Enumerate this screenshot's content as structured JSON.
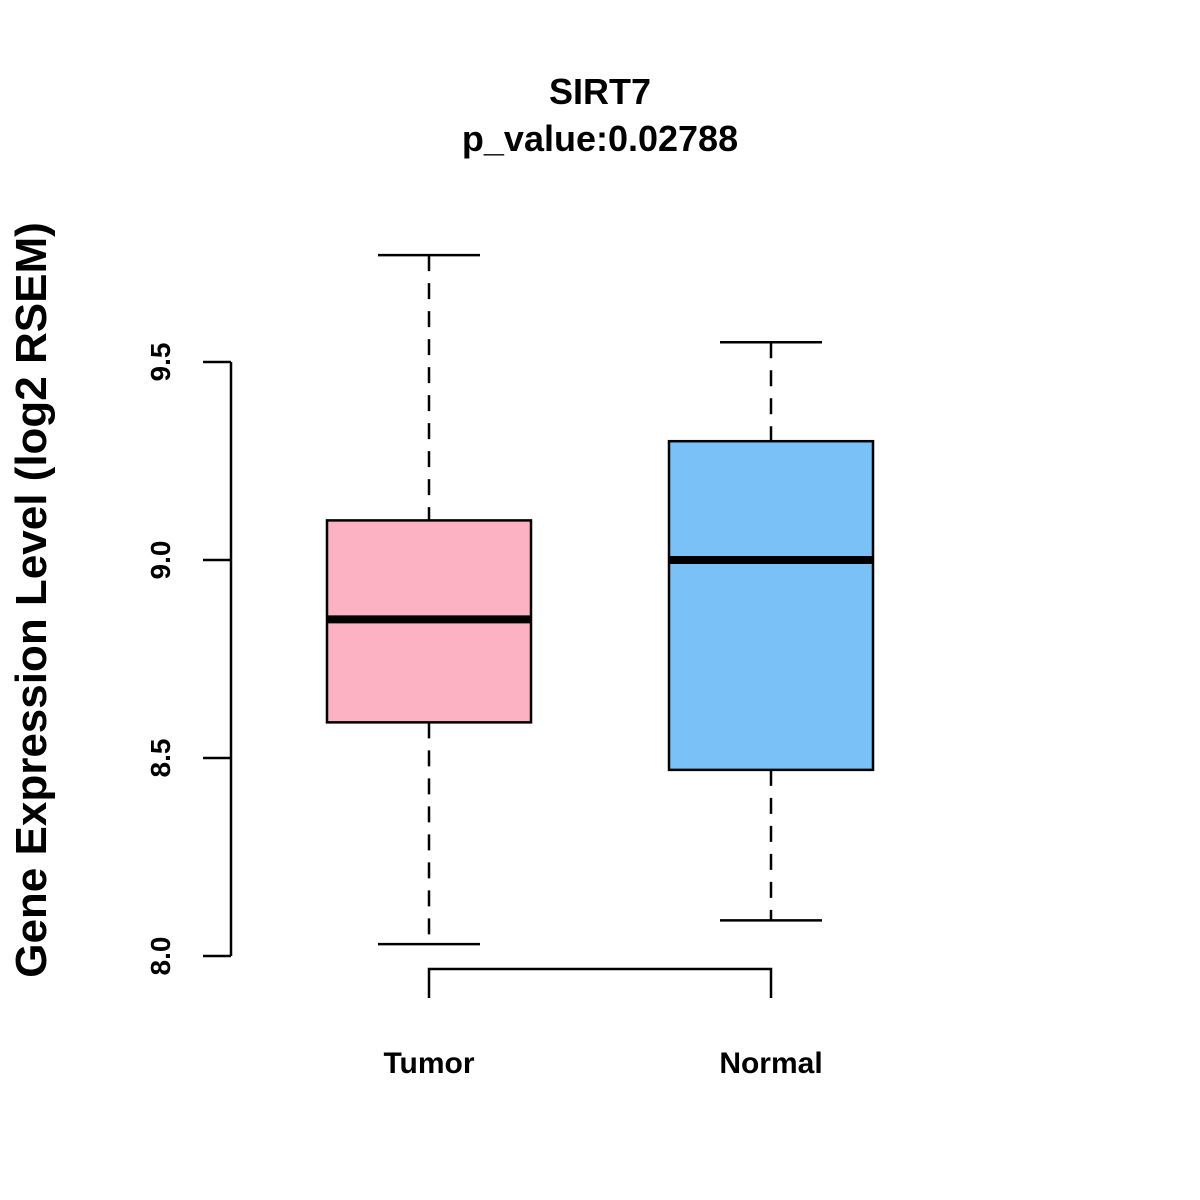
{
  "chart_data": {
    "type": "boxplot",
    "title": "SIRT7",
    "subtitle": "p_value:0.02788",
    "xlabel": "",
    "ylabel": "Gene Expression Level (log2 RSEM)",
    "ylim": [
      8.0,
      9.5
    ],
    "yticks": [
      "8.0",
      "8.5",
      "9.0",
      "9.5"
    ],
    "grid": false,
    "categories": [
      "Tumor",
      "Normal"
    ],
    "series": [
      {
        "name": "Tumor",
        "min": 8.03,
        "q1": 8.59,
        "median": 8.85,
        "q3": 9.1,
        "max": 9.77,
        "color": "#FDB2C3"
      },
      {
        "name": "Normal",
        "min": 8.09,
        "q1": 8.47,
        "median": 9.0,
        "q3": 9.3,
        "max": 9.55,
        "color": "#79C1F7"
      }
    ],
    "comparison_bracket": {
      "between": [
        "Tumor",
        "Normal"
      ],
      "label": ""
    }
  }
}
